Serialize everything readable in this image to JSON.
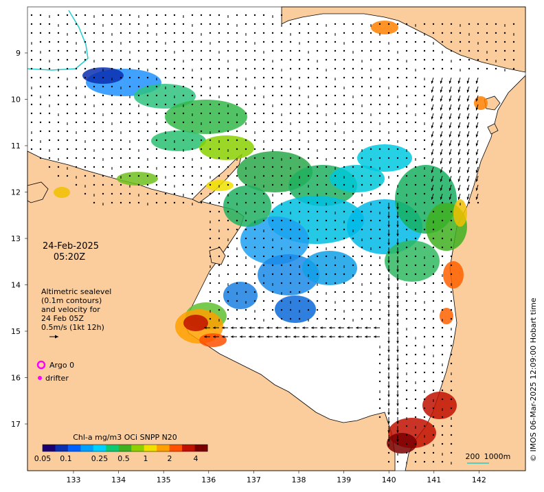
{
  "date_label": "24-Feb-2025",
  "time_label": "05:20Z",
  "legend_block": {
    "line1": "Altimetric sealevel",
    "line2": "(0.1m contours)",
    "line3": "and velocity for",
    "line4": "24 Feb 05Z",
    "line5": "0.5m/s (1kt 12h)"
  },
  "argo_label": "Argo 0",
  "drifter_label": "drifter",
  "colorbar": {
    "title": "Chl-a mg/m3 OCi SNPP N20",
    "ticks": [
      "0.05",
      "0.1",
      "0.25",
      "0.5",
      "1",
      "2",
      "4"
    ],
    "colors": [
      "#1a0070",
      "#0a2fb0",
      "#0060ff",
      "#00a0ff",
      "#00d0ff",
      "#10c870",
      "#40b020",
      "#90d000",
      "#f0e000",
      "#ffa000",
      "#ff5000",
      "#c01000",
      "#7a0000"
    ]
  },
  "x_ticks": [
    "133",
    "134",
    "135",
    "136",
    "137",
    "138",
    "139",
    "140",
    "141",
    "142"
  ],
  "y_ticks": [
    "9",
    "10",
    "11",
    "12",
    "13",
    "14",
    "15",
    "16",
    "17"
  ],
  "scale_bar": {
    "left_label": "200",
    "right_label": "1000m"
  },
  "credit": "© IMOS 06-Mar-2025 12:09:00 Hobart time",
  "colors": {
    "land": "#fbcd9d",
    "ocean": "#ffffff",
    "argo": "#ff00ff",
    "drifter": "#ff00ff",
    "coastline": "#000000",
    "boundary": "#22cccc"
  }
}
